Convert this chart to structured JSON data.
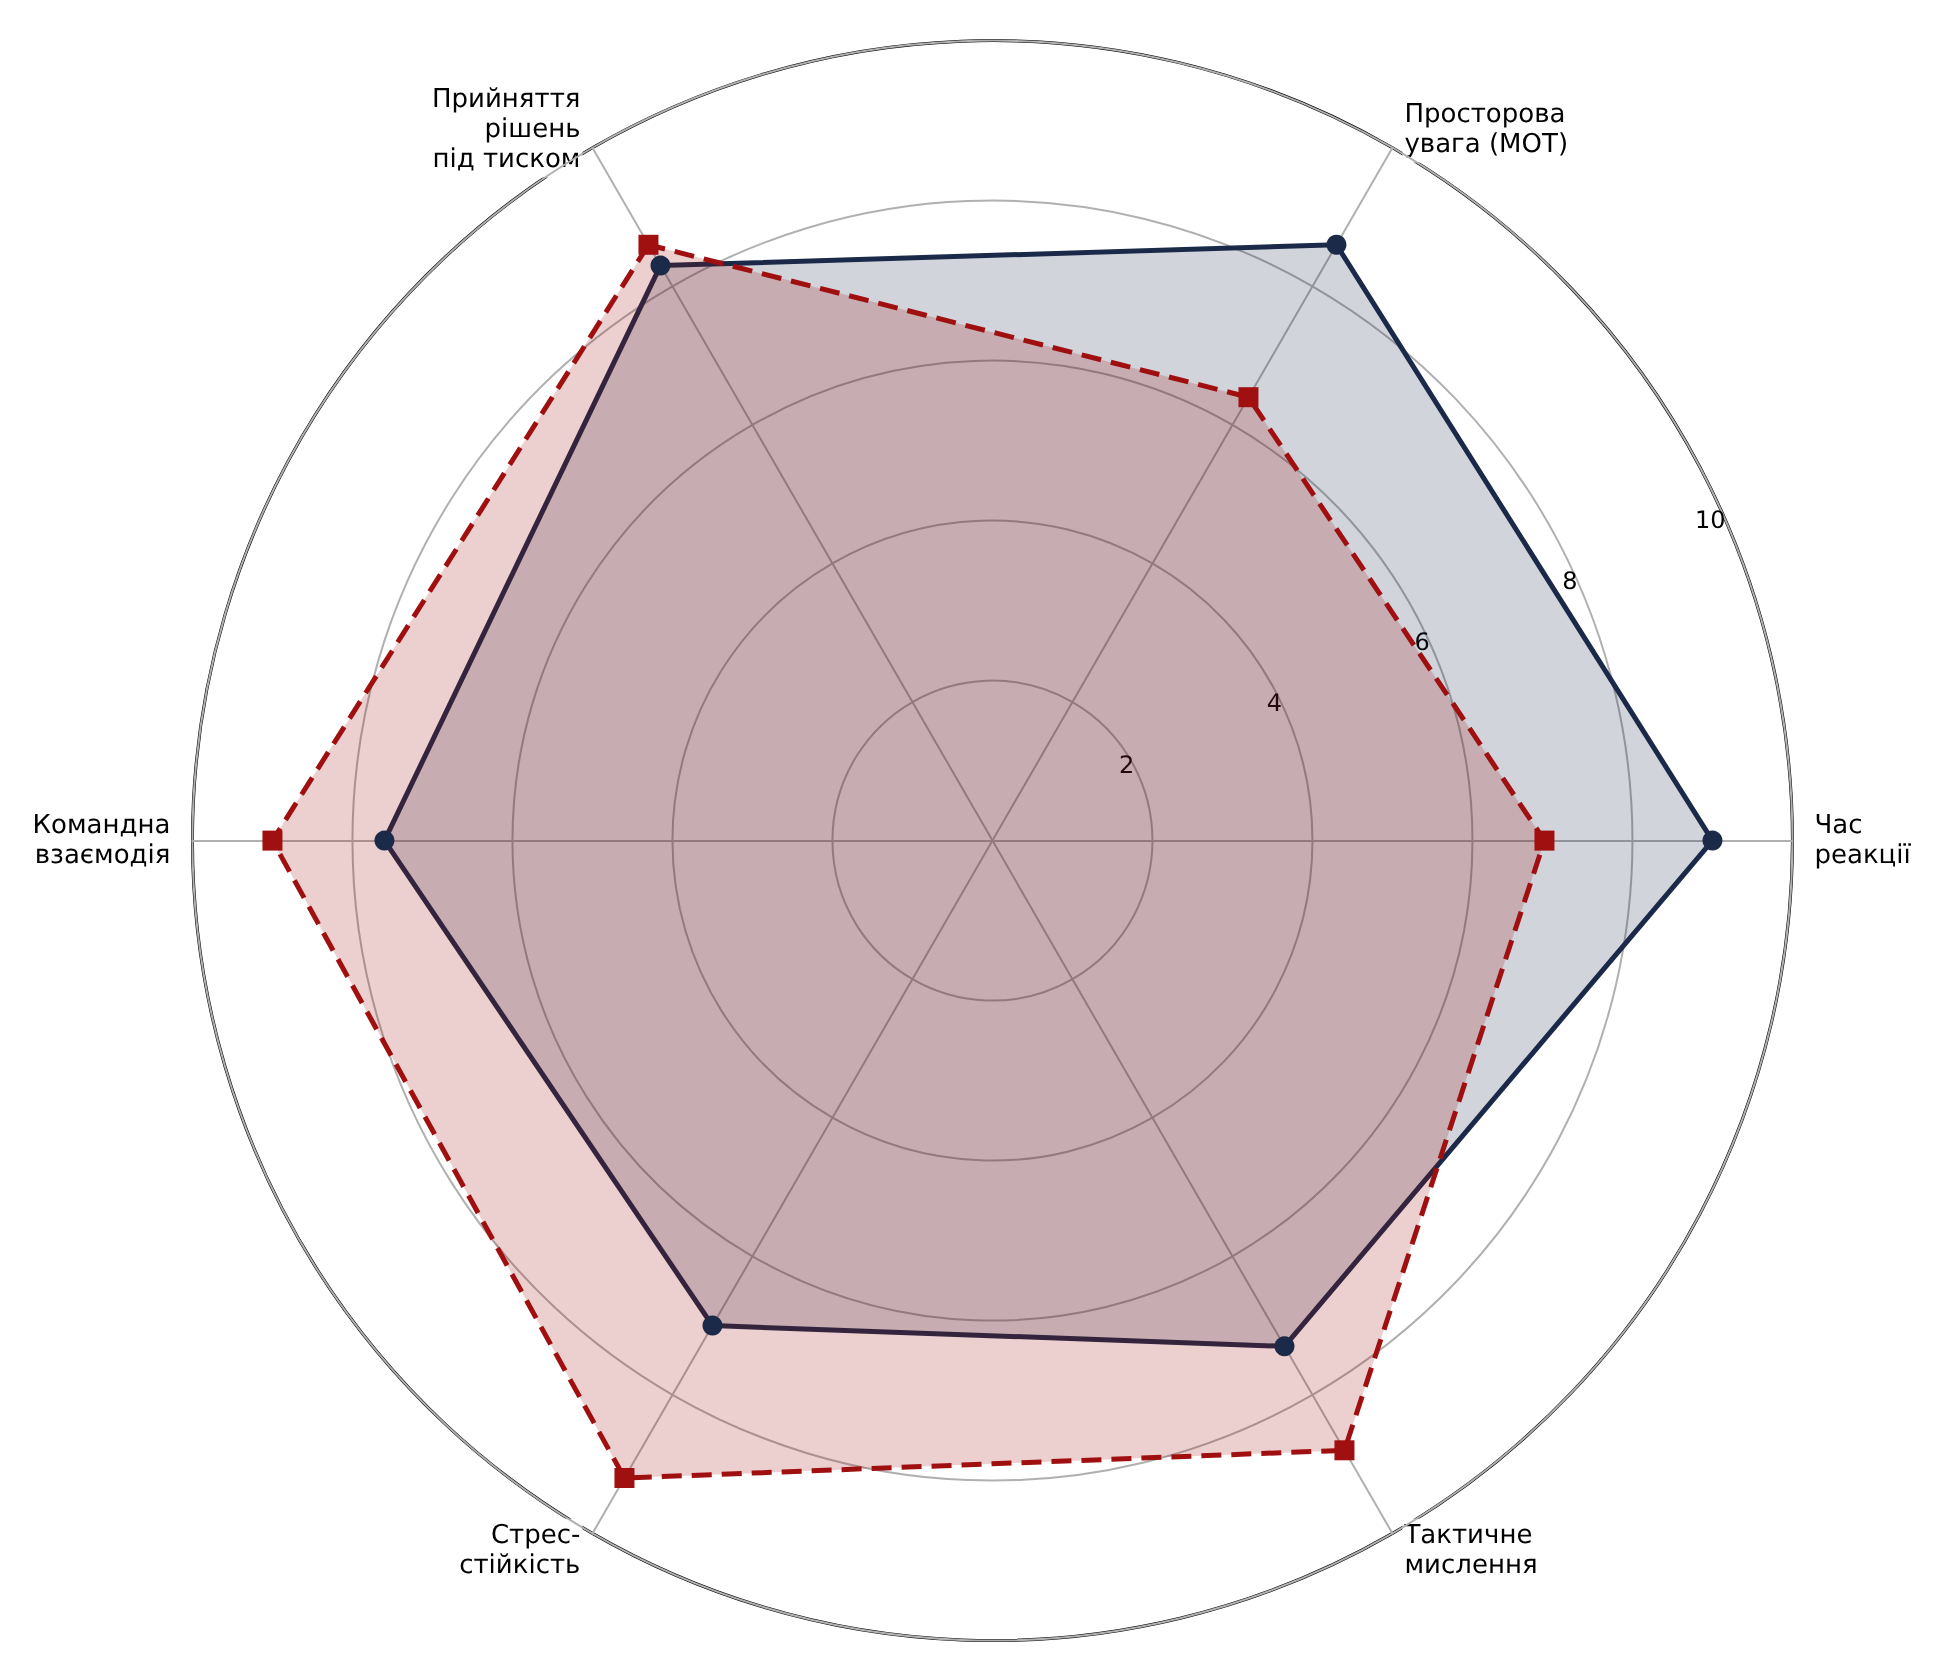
{
  "chart_data": {
    "type": "radar",
    "categories": [
      "Просторова\nувага (МОТ)",
      "Час\nреакції",
      "Тактичне\nмислення",
      "Стрес-\nстійкість",
      "Командна\nвзаємодія",
      "Прийняття\nрішень\nпід тиском"
    ],
    "series": [
      {
        "color": "#1b2a49",
        "values": [
          8.6,
          9.0,
          7.3,
          7.0,
          7.6,
          8.3
        ],
        "marker": "circle",
        "line_style": "solid"
      },
      {
        "color": "#a01010",
        "values": [
          6.4,
          6.9,
          8.8,
          9.2,
          9.0,
          8.6
        ],
        "marker": "square",
        "line_style": "dashed"
      }
    ],
    "ylim": [
      0,
      10
    ],
    "yticks": [
      2,
      4,
      6,
      8,
      10
    ],
    "grid": true
  }
}
